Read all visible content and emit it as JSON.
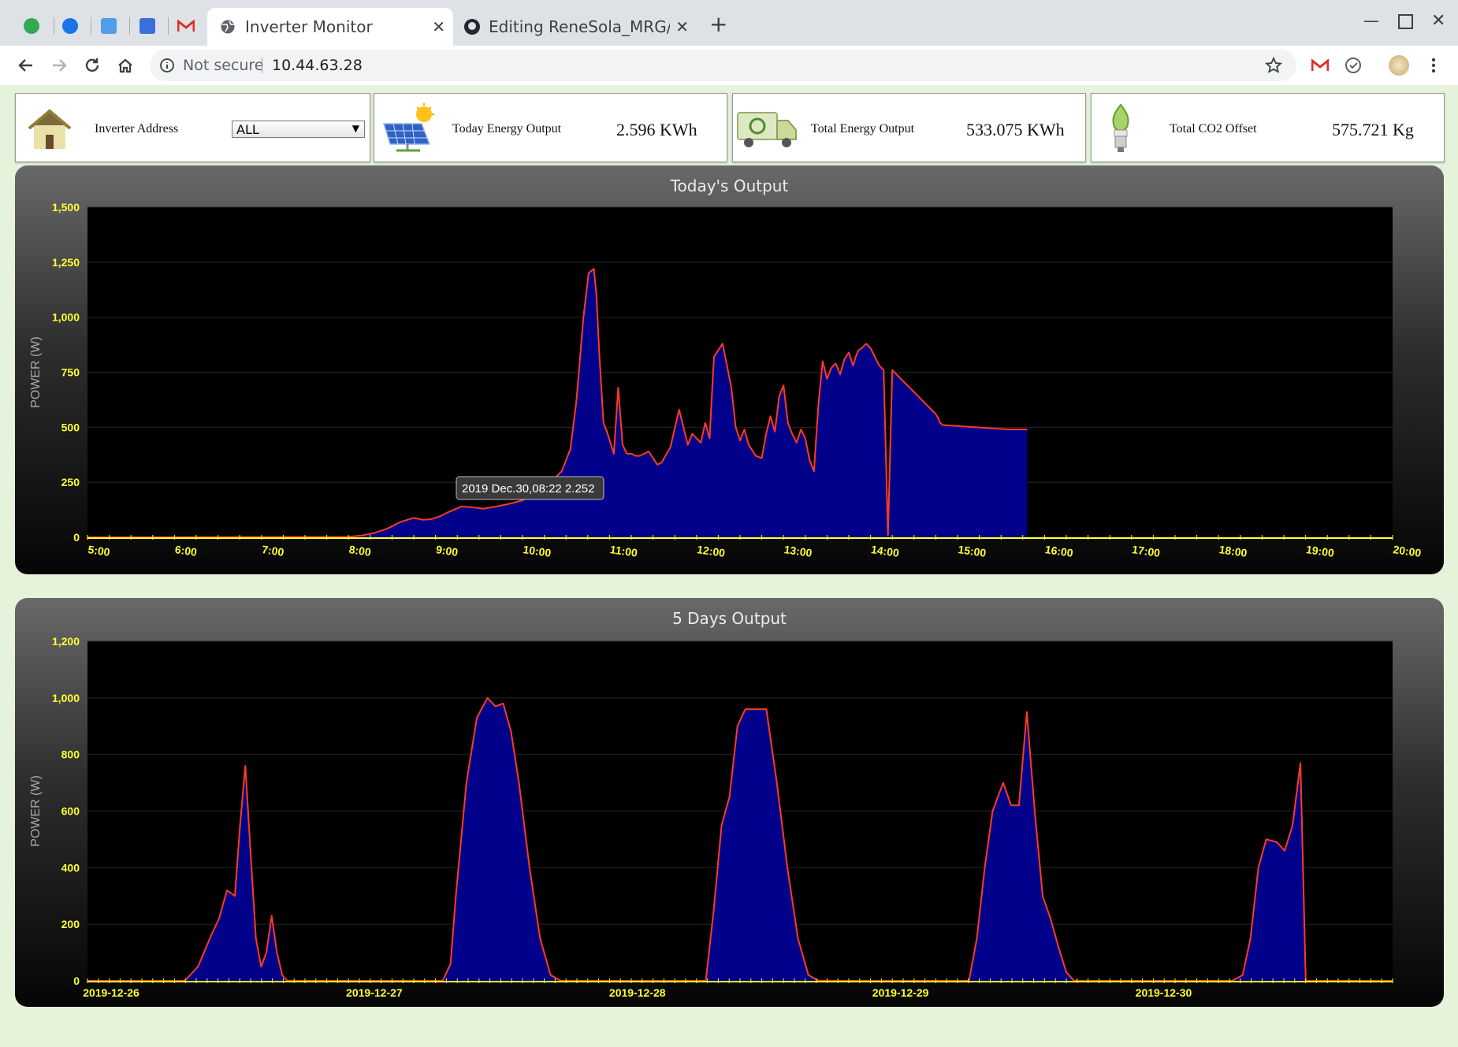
{
  "browser": {
    "tabs": [
      {
        "label": "Inverter Monitor",
        "active": true
      },
      {
        "label": "Editing ReneSola_MRG/RE",
        "active": false
      }
    ],
    "security": "Not secure",
    "url": "10.44.63.28"
  },
  "cards": {
    "inverter_address": {
      "label": "Inverter Address",
      "selected": "ALL"
    },
    "today_energy": {
      "label": "Today Energy Output",
      "value": "2.596 KWh"
    },
    "total_energy": {
      "label": "Total Energy Output",
      "value": "533.075 KWh"
    },
    "co2": {
      "label": "Total CO2 Offset",
      "value": "575.721 Kg"
    }
  },
  "colors": {
    "fill": "#00008b",
    "line": "#ff3b1f",
    "tick": "#ffff33",
    "page_bg": "#e4f3da"
  },
  "chart_data": [
    {
      "type": "area",
      "title": "Today's Output",
      "ylabel": "POWER (W)",
      "xlabel": "",
      "ylim": [
        0,
        1500
      ],
      "yticks": [
        0,
        250,
        500,
        750,
        1000,
        1250,
        1500
      ],
      "xlim": [
        5,
        20
      ],
      "xticks": [
        "5:00",
        "6:00",
        "7:00",
        "8:00",
        "9:00",
        "10:00",
        "11:00",
        "12:00",
        "13:00",
        "14:00",
        "15:00",
        "16:00",
        "17:00",
        "18:00",
        "19:00",
        "20:00"
      ],
      "grid": true,
      "tooltip": "2019 Dec.30,08:22 2.252",
      "x": [
        5.0,
        8.0,
        8.15,
        8.3,
        8.45,
        8.6,
        8.75,
        8.85,
        8.95,
        9.05,
        9.15,
        9.3,
        9.45,
        9.55,
        9.7,
        9.85,
        10.0,
        10.15,
        10.3,
        10.45,
        10.55,
        10.62,
        10.7,
        10.76,
        10.82,
        10.85,
        10.88,
        10.93,
        10.97,
        11.05,
        11.1,
        11.15,
        11.2,
        11.25,
        11.3,
        11.35,
        11.45,
        11.55,
        11.6,
        11.7,
        11.8,
        11.9,
        11.95,
        12.05,
        12.1,
        12.15,
        12.2,
        12.3,
        12.4,
        12.45,
        12.5,
        12.55,
        12.6,
        12.68,
        12.75,
        12.8,
        12.85,
        12.9,
        12.95,
        13.0,
        13.05,
        13.1,
        13.15,
        13.2,
        13.25,
        13.3,
        13.35,
        13.4,
        13.45,
        13.5,
        13.55,
        13.6,
        13.65,
        13.7,
        13.75,
        13.8,
        13.83,
        13.86,
        13.9,
        13.95,
        14.0,
        14.05,
        14.1,
        14.15,
        14.2,
        14.25,
        14.3,
        14.35,
        14.4,
        14.45,
        14.5,
        14.55,
        14.6,
        14.65,
        14.7,
        14.75,
        14.78,
        14.8,
        14.83,
        15.2,
        15.6,
        15.8
      ],
      "values": [
        0,
        2,
        8,
        20,
        40,
        70,
        88,
        80,
        82,
        95,
        115,
        140,
        135,
        130,
        140,
        152,
        168,
        195,
        240,
        300,
        400,
        620,
        1000,
        1200,
        1220,
        1100,
        850,
        520,
        480,
        380,
        680,
        420,
        380,
        380,
        370,
        370,
        390,
        330,
        340,
        410,
        580,
        420,
        470,
        430,
        520,
        450,
        820,
        880,
        680,
        500,
        440,
        490,
        420,
        370,
        360,
        470,
        550,
        480,
        640,
        690,
        520,
        470,
        430,
        490,
        450,
        350,
        300,
        600,
        800,
        720,
        770,
        790,
        740,
        810,
        840,
        780,
        820,
        850,
        860,
        880,
        860,
        820,
        780,
        760,
        10,
        760,
        740,
        720,
        700,
        680,
        660,
        640,
        620,
        600,
        580,
        560,
        540,
        520,
        510,
        500,
        490,
        490
      ],
      "series": [
        {
          "name": ""
        }
      ]
    },
    {
      "type": "area",
      "title": "5 Days Output",
      "ylabel": "POWER (W)",
      "xlabel": "",
      "ylim": [
        0,
        1200
      ],
      "yticks": [
        0,
        200,
        400,
        600,
        800,
        1000,
        1200
      ],
      "xlim": [
        0,
        4.96
      ],
      "xticks": [
        "2019-12-26",
        "2019-12-27",
        "2019-12-28",
        "2019-12-29",
        "2019-12-30"
      ],
      "grid": true,
      "x": [
        0.0,
        0.37,
        0.42,
        0.47,
        0.5,
        0.53,
        0.56,
        0.58,
        0.6,
        0.62,
        0.64,
        0.66,
        0.68,
        0.7,
        0.72,
        0.74,
        0.76,
        0.78,
        1.35,
        1.38,
        1.4,
        1.44,
        1.48,
        1.52,
        1.55,
        1.58,
        1.61,
        1.64,
        1.68,
        1.72,
        1.76,
        1.8,
        2.35,
        2.38,
        2.41,
        2.44,
        2.47,
        2.5,
        2.54,
        2.58,
        2.62,
        2.66,
        2.7,
        2.74,
        2.78,
        3.35,
        3.38,
        3.41,
        3.44,
        3.48,
        3.51,
        3.54,
        3.57,
        3.6,
        3.63,
        3.66,
        3.69,
        3.72,
        3.75,
        3.78,
        4.35,
        4.39,
        4.42,
        4.45,
        4.48,
        4.52,
        4.55,
        4.58,
        4.61,
        4.63,
        4.96
      ],
      "values": [
        0,
        0,
        50,
        160,
        220,
        320,
        300,
        550,
        760,
        450,
        150,
        50,
        100,
        230,
        100,
        20,
        0,
        0,
        0,
        60,
        300,
        700,
        930,
        1000,
        970,
        980,
        880,
        700,
        400,
        150,
        20,
        0,
        0,
        250,
        550,
        650,
        900,
        960,
        960,
        960,
        700,
        400,
        150,
        20,
        0,
        0,
        150,
        400,
        600,
        700,
        620,
        620,
        950,
        600,
        300,
        220,
        120,
        30,
        0,
        0,
        0,
        20,
        150,
        400,
        500,
        490,
        460,
        550,
        770,
        0,
        0
      ],
      "series": [
        {
          "name": ""
        }
      ]
    }
  ]
}
